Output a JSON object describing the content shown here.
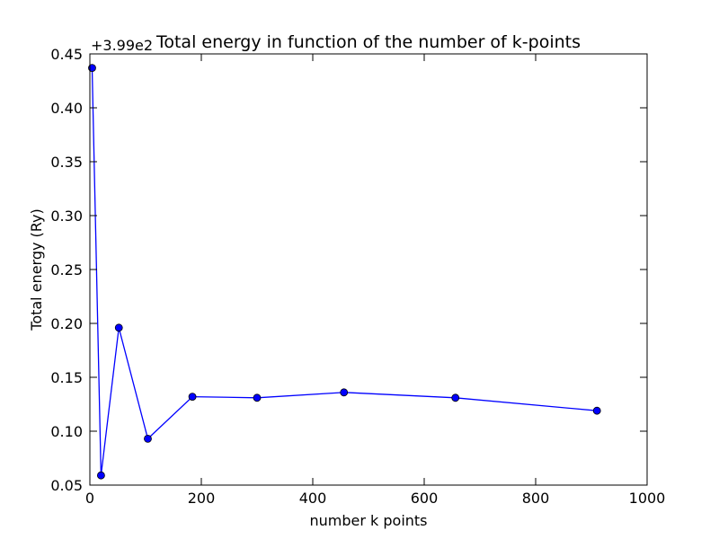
{
  "chart_data": {
    "type": "line",
    "title": "Total energy in function of the number of k-points",
    "xlabel": "number k points",
    "ylabel": "Total energy (Ry)",
    "y_offset_label": "+3.99e2",
    "xlim": [
      0,
      1000
    ],
    "ylim": [
      0.05,
      0.45
    ],
    "xticks": [
      0,
      200,
      400,
      600,
      800,
      1000
    ],
    "yticks": [
      0.05,
      0.1,
      0.15,
      0.2,
      0.25,
      0.3,
      0.35,
      0.4,
      0.45
    ],
    "xtick_labels": [
      "0",
      "200",
      "400",
      "600",
      "800",
      "1000"
    ],
    "ytick_labels": [
      "0.05",
      "0.10",
      "0.15",
      "0.20",
      "0.25",
      "0.30",
      "0.35",
      "0.40",
      "0.45"
    ],
    "grid": false,
    "series": [
      {
        "color": "#0000ff",
        "marker": "circle",
        "x": [
          4,
          20,
          52,
          104,
          184,
          300,
          456,
          656,
          910
        ],
        "y": [
          0.437,
          0.059,
          0.196,
          0.093,
          0.132,
          0.131,
          0.136,
          0.131,
          0.119
        ]
      }
    ]
  }
}
